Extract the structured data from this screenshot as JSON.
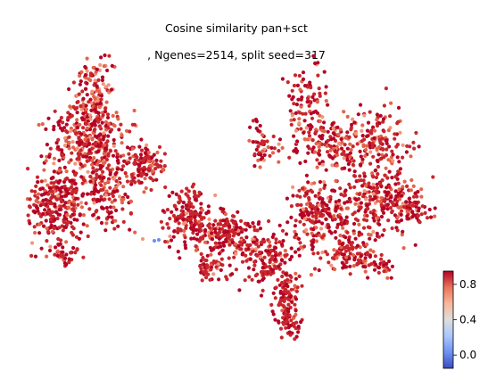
{
  "chart_data": {
    "type": "scatter",
    "title_line1": "Cosine similarity pan+sct",
    "title_line2": ", Ngenes=2514, split seed=317",
    "colormap": "coolwarm",
    "colorbar": {
      "range": [
        -0.15,
        0.95
      ],
      "ticks": [
        0.8,
        0.4,
        0.0
      ],
      "tick_labels": [
        "0.8",
        "0.4",
        "0.0"
      ],
      "colors": [
        "#3b4cc0",
        "#6f92f3",
        "#aac7fd",
        "#dddddd",
        "#f7b89c",
        "#e7745b",
        "#b40426"
      ]
    },
    "axes_visible": false,
    "grid": false,
    "value_summary": {
      "typical": 0.85,
      "spread": 0.12,
      "rare_low": -0.05
    },
    "point_colors": {
      "dark_red": "#b40426",
      "red": "#c8262c",
      "salmon": "#e2644b",
      "peach": "#f2957a",
      "blue": "#6f92f3"
    }
  }
}
